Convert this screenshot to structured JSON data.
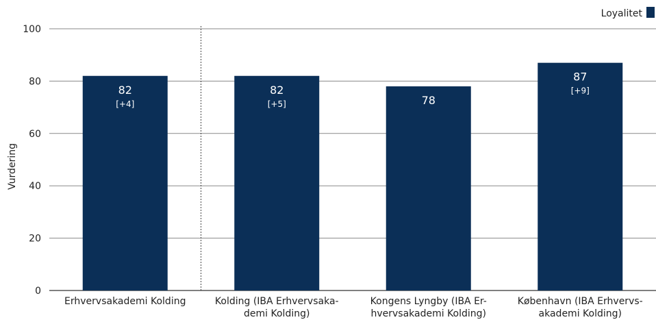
{
  "chart_data": {
    "type": "bar",
    "ylabel": "Vurdering",
    "ylim": [
      0,
      100
    ],
    "yticks": [
      0,
      20,
      40,
      60,
      80,
      100
    ],
    "grid": true,
    "legend": {
      "position": "top-right",
      "label": "Loyalitet"
    },
    "colors": {
      "bar": "#0b2f57",
      "grid": "#8a8a8a",
      "axis": "#555555"
    },
    "categories": [
      [
        "Erhvervsakademi Kolding"
      ],
      [
        "Kolding (IBA Erhvervsaka-",
        "demi Kolding)"
      ],
      [
        "Kongens Lyngby (IBA Er-",
        "hvervsakademi Kolding)"
      ],
      [
        "København (IBA Erhvervs-",
        "akademi Kolding)"
      ]
    ],
    "series": [
      {
        "name": "Loyalitet",
        "values": [
          82,
          82,
          78,
          87
        ],
        "value_labels": [
          "82",
          "82",
          "78",
          "87"
        ],
        "delta_labels": [
          "[+4]",
          "[+5]",
          "",
          "[+9]"
        ]
      }
    ]
  }
}
